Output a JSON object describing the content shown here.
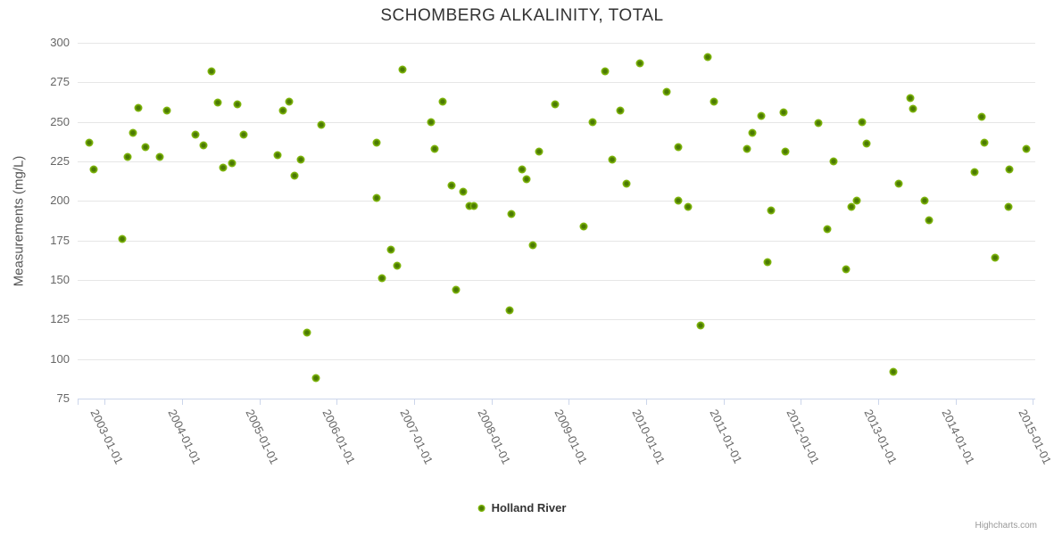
{
  "chart": {
    "title": "SCHOMBERG ALKALINITY, TOTAL",
    "credits": "Highcharts.com"
  },
  "colors": {
    "marker_edge": "#7db40a",
    "marker_core": "#4b7a03",
    "grid": "#e6e6e6",
    "axis": "#ccd6eb",
    "tick_label": "#666666",
    "title": "#333333",
    "credits": "#999999"
  },
  "chart_data": {
    "type": "scatter",
    "title": "SCHOMBERG ALKALINITY, TOTAL",
    "xlabel": "",
    "ylabel": "Measurements (mg/L)",
    "ylim": [
      75,
      300
    ],
    "xlim": [
      2002.65,
      2015.03
    ],
    "grid": true,
    "legend_position": "bottom-center",
    "y_ticks": [
      75,
      100,
      125,
      150,
      175,
      200,
      225,
      250,
      275,
      300
    ],
    "x_tick_years": [
      2003,
      2004,
      2005,
      2006,
      2007,
      2008,
      2009,
      2010,
      2011,
      2012,
      2013,
      2014,
      2015
    ],
    "x_tick_labels": [
      "2003-01-01",
      "2004-01-01",
      "2005-01-01",
      "2006-01-01",
      "2007-01-01",
      "2008-01-01",
      "2009-01-01",
      "2010-01-01",
      "2011-01-01",
      "2012-01-01",
      "2013-01-01",
      "2014-01-01",
      "2015-01-01"
    ],
    "series": [
      {
        "name": "Holland River",
        "color": "#7db40a",
        "points": [
          [
            2002.8,
            237
          ],
          [
            2002.86,
            220
          ],
          [
            2003.23,
            176
          ],
          [
            2003.3,
            228
          ],
          [
            2003.36,
            243
          ],
          [
            2003.44,
            259
          ],
          [
            2003.53,
            234
          ],
          [
            2003.71,
            228
          ],
          [
            2003.8,
            257
          ],
          [
            2004.17,
            242
          ],
          [
            2004.28,
            235
          ],
          [
            2004.38,
            282
          ],
          [
            2004.46,
            262
          ],
          [
            2004.53,
            221
          ],
          [
            2004.65,
            224
          ],
          [
            2004.71,
            261
          ],
          [
            2004.8,
            242
          ],
          [
            2005.23,
            229
          ],
          [
            2005.3,
            257
          ],
          [
            2005.39,
            263
          ],
          [
            2005.45,
            216
          ],
          [
            2005.53,
            226
          ],
          [
            2005.61,
            117
          ],
          [
            2005.73,
            88
          ],
          [
            2005.8,
            248
          ],
          [
            2006.51,
            237
          ],
          [
            2006.52,
            202
          ],
          [
            2006.59,
            151
          ],
          [
            2006.7,
            169
          ],
          [
            2006.78,
            159
          ],
          [
            2006.85,
            283
          ],
          [
            2007.22,
            250
          ],
          [
            2007.26,
            233
          ],
          [
            2007.37,
            263
          ],
          [
            2007.48,
            210
          ],
          [
            2007.54,
            144
          ],
          [
            2007.64,
            206
          ],
          [
            2007.72,
            197
          ],
          [
            2007.77,
            197
          ],
          [
            2008.24,
            131
          ],
          [
            2008.26,
            192
          ],
          [
            2008.4,
            220
          ],
          [
            2008.45,
            214
          ],
          [
            2008.54,
            172
          ],
          [
            2008.61,
            231
          ],
          [
            2008.82,
            261
          ],
          [
            2009.19,
            184
          ],
          [
            2009.31,
            250
          ],
          [
            2009.47,
            282
          ],
          [
            2009.56,
            226
          ],
          [
            2009.67,
            257
          ],
          [
            2009.74,
            211
          ],
          [
            2009.92,
            287
          ],
          [
            2010.26,
            269
          ],
          [
            2010.41,
            234
          ],
          [
            2010.42,
            200
          ],
          [
            2010.54,
            196
          ],
          [
            2010.7,
            121
          ],
          [
            2010.79,
            291
          ],
          [
            2010.88,
            263
          ],
          [
            2011.3,
            233
          ],
          [
            2011.37,
            243
          ],
          [
            2011.49,
            254
          ],
          [
            2011.57,
            161
          ],
          [
            2011.61,
            194
          ],
          [
            2011.78,
            256
          ],
          [
            2011.8,
            231
          ],
          [
            2012.23,
            249
          ],
          [
            2012.34,
            182
          ],
          [
            2012.42,
            225
          ],
          [
            2012.58,
            157
          ],
          [
            2012.65,
            196
          ],
          [
            2012.72,
            200
          ],
          [
            2012.79,
            250
          ],
          [
            2012.85,
            236
          ],
          [
            2013.19,
            92
          ],
          [
            2013.27,
            211
          ],
          [
            2013.42,
            265
          ],
          [
            2013.45,
            258
          ],
          [
            2013.6,
            200
          ],
          [
            2013.66,
            188
          ],
          [
            2014.25,
            218
          ],
          [
            2014.34,
            253
          ],
          [
            2014.37,
            237
          ],
          [
            2014.51,
            164
          ],
          [
            2014.68,
            196
          ],
          [
            2014.7,
            220
          ],
          [
            2014.91,
            233
          ]
        ]
      }
    ]
  }
}
